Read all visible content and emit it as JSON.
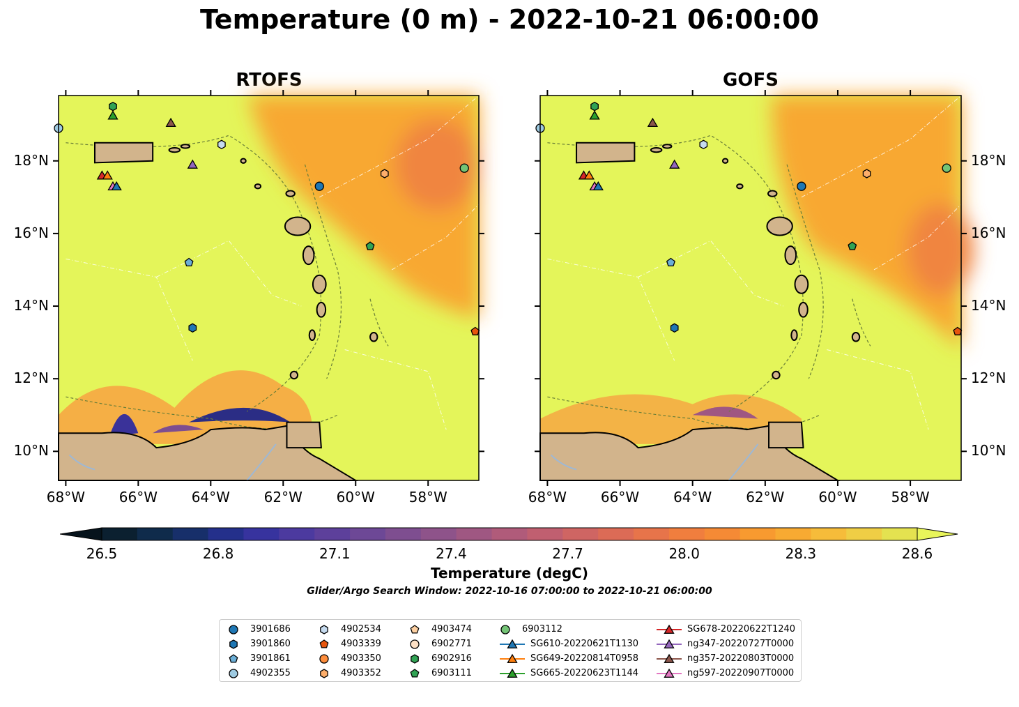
{
  "suptitle": "Temperature (0 m) - 2022-10-21 06:00:00",
  "panels": [
    {
      "title": "RTOFS",
      "lat_labels_side": "left"
    },
    {
      "title": "GOFS",
      "lat_labels_side": "right"
    }
  ],
  "map_extent": {
    "lon_min": -68.2,
    "lon_max": -56.6,
    "lat_min": 9.2,
    "lat_max": 19.8
  },
  "lon_ticks": [
    {
      "lon": -68,
      "label": "68°W"
    },
    {
      "lon": -66,
      "label": "66°W"
    },
    {
      "lon": -64,
      "label": "64°W"
    },
    {
      "lon": -62,
      "label": "62°W"
    },
    {
      "lon": -60,
      "label": "60°W"
    },
    {
      "lon": -58,
      "label": "58°W"
    }
  ],
  "lat_ticks": [
    {
      "lat": 10,
      "label": "10°N"
    },
    {
      "lat": 12,
      "label": "12°N"
    },
    {
      "lat": 14,
      "label": "14°N"
    },
    {
      "lat": 16,
      "label": "16°N"
    },
    {
      "lat": 18,
      "label": "18°N"
    }
  ],
  "colorbar": {
    "label": "Temperature (degC)",
    "ticks": [
      "26.5",
      "26.8",
      "27.1",
      "27.4",
      "27.7",
      "28.0",
      "28.3",
      "28.6"
    ],
    "extend": "both",
    "colors": [
      "#0b2030",
      "#0f2b4b",
      "#172f6a",
      "#24308b",
      "#37339e",
      "#4c3a9f",
      "#5d409b",
      "#6d4896",
      "#7e4e90",
      "#8e538a",
      "#9f5782",
      "#b05b7a",
      "#c05f70",
      "#cf6563",
      "#dc6b56",
      "#e7744a",
      "#f07e3e",
      "#f58a35",
      "#f89a30",
      "#f8aa32",
      "#f6bc3a",
      "#efce45",
      "#e4e250"
    ]
  },
  "search_window": "Glider/Argo Search Window: 2022-10-16 07:00:00 to 2022-10-21 06:00:00",
  "colors": {
    "land": "#d2b48c",
    "sea_base": "#e4f55a",
    "warm": "#f8a833",
    "hot": "#f08540",
    "river": "#9db8d6"
  },
  "legend": [
    {
      "label": "3901686",
      "marker": "circle",
      "color": "#1f77b4"
    },
    {
      "label": "3901860",
      "marker": "hexagon",
      "color": "#1f77b4"
    },
    {
      "label": "3901861",
      "marker": "pentagon",
      "color": "#6baed6"
    },
    {
      "label": "4902355",
      "marker": "circle",
      "color": "#9ecae1"
    },
    {
      "label": "4902534",
      "marker": "hexagon",
      "color": "#c6dbef"
    },
    {
      "label": "4903339",
      "marker": "pentagon",
      "color": "#e6550d"
    },
    {
      "label": "4903350",
      "marker": "circle",
      "color": "#fd8d3c"
    },
    {
      "label": "4903352",
      "marker": "hexagon",
      "color": "#fdae6b"
    },
    {
      "label": "4903474",
      "marker": "pentagon",
      "color": "#fdd0a2"
    },
    {
      "label": "6902771",
      "marker": "circle",
      "color": "#fde0c5"
    },
    {
      "label": "6902916",
      "marker": "hexagon",
      "color": "#31a354"
    },
    {
      "label": "6903111",
      "marker": "pentagon",
      "color": "#31a354"
    },
    {
      "label": "6903112",
      "marker": "circle",
      "color": "#74c476"
    },
    {
      "label": "SG610-20220621T1130",
      "marker": "triangle",
      "color": "#1f77b4",
      "line": true
    },
    {
      "label": "SG649-20220814T0958",
      "marker": "triangle",
      "color": "#ff7f0e",
      "line": true
    },
    {
      "label": "SG665-20220623T1144",
      "marker": "triangle",
      "color": "#2ca02c",
      "line": true
    },
    {
      "label": "SG678-20220622T1240",
      "marker": "triangle",
      "color": "#d62728",
      "line": true
    },
    {
      "label": "ng347-20220727T0000",
      "marker": "triangle",
      "color": "#9467bd",
      "line": true
    },
    {
      "label": "ng357-20220803T0000",
      "marker": "triangle",
      "color": "#8c564b",
      "line": true
    },
    {
      "label": "ng597-20220907T0000",
      "marker": "triangle",
      "color": "#e377c2",
      "line": true
    }
  ],
  "observations": [
    {
      "id": "3901686",
      "lon": -61.0,
      "lat": 17.3
    },
    {
      "id": "4902355",
      "lon": -68.2,
      "lat": 18.9
    },
    {
      "id": "4902534",
      "lon": -63.7,
      "lat": 18.45
    },
    {
      "id": "3901861",
      "lon": -64.6,
      "lat": 15.2
    },
    {
      "id": "3901860",
      "lon": -64.5,
      "lat": 13.4
    },
    {
      "id": "4903352",
      "lon": -59.2,
      "lat": 17.65
    },
    {
      "id": "6903112",
      "lon": -57.0,
      "lat": 17.8
    },
    {
      "id": "6903111",
      "lon": -59.6,
      "lat": 15.65
    },
    {
      "id": "4903339",
      "lon": -56.7,
      "lat": 13.3
    },
    {
      "id": "6902916",
      "lon": -66.7,
      "lat": 19.5
    },
    {
      "id": "SG665-20220623T1144",
      "lon": -66.7,
      "lat": 19.25
    },
    {
      "id": "ng357-20220803T0000",
      "lon": -65.1,
      "lat": 19.05
    },
    {
      "id": "ng347-20220727T0000",
      "lon": -64.5,
      "lat": 17.9
    },
    {
      "id": "SG678-20220622T1240",
      "lon": -67.0,
      "lat": 17.6
    },
    {
      "id": "SG649-20220814T0958",
      "lon": -66.85,
      "lat": 17.6
    },
    {
      "id": "ng597-20220907T0000",
      "lon": -66.7,
      "lat": 17.3
    },
    {
      "id": "SG610-20220621T1130",
      "lon": -66.6,
      "lat": 17.3
    }
  ]
}
